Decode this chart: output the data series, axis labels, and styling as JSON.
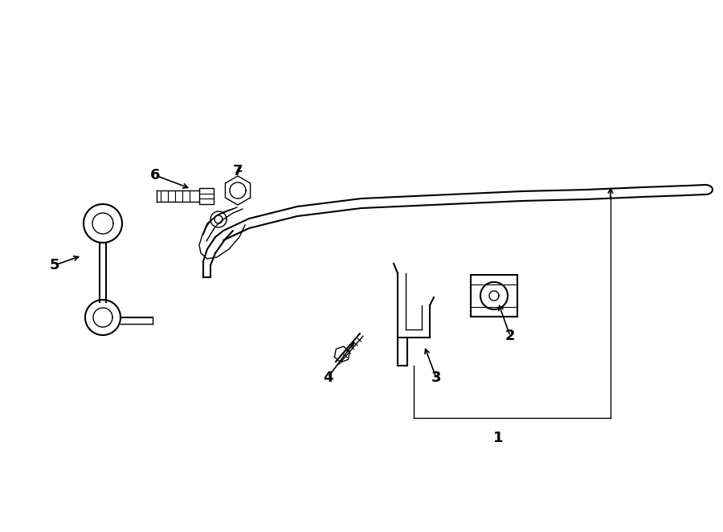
{
  "background_color": "#ffffff",
  "line_color": "#000000",
  "figure_width": 9.0,
  "figure_height": 6.62,
  "dpi": 100
}
